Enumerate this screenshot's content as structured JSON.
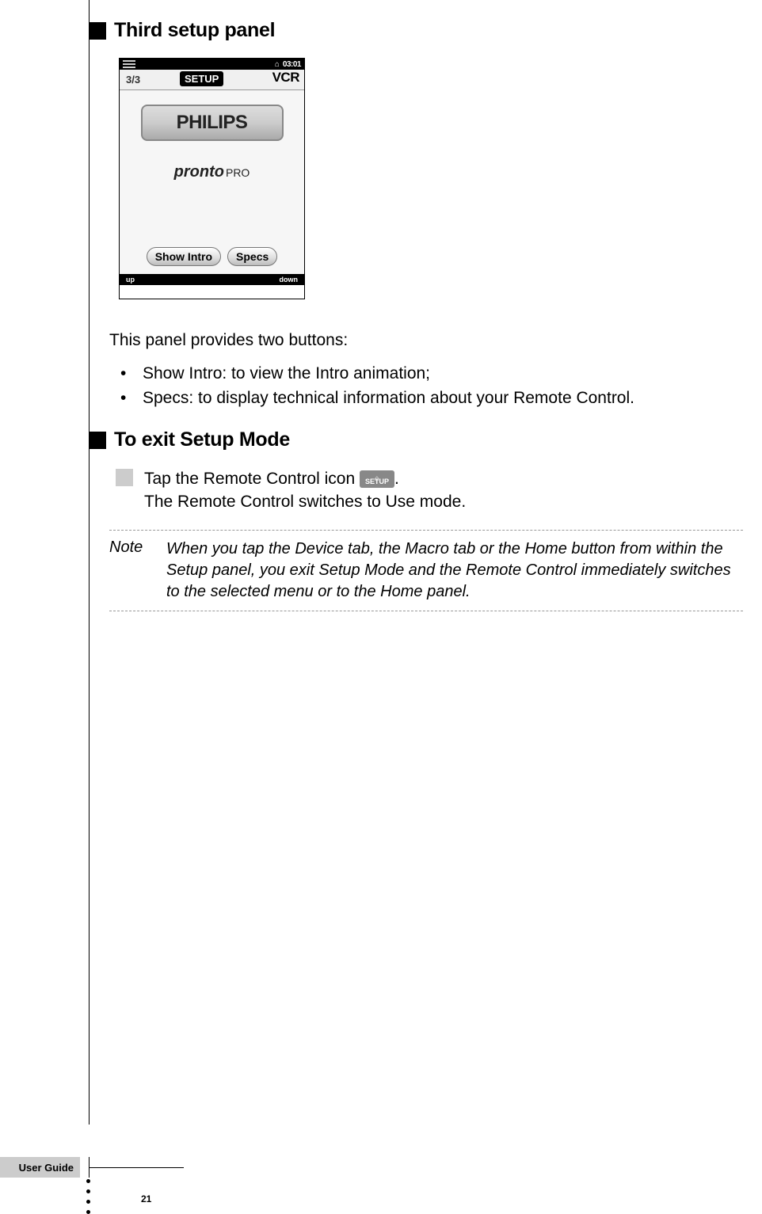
{
  "headings": {
    "section1": "Third setup panel",
    "section2": "To exit Setup Mode"
  },
  "remote": {
    "time": "03:01",
    "page_indicator": "3/3",
    "setup_label": "SETUP",
    "device_label": "VCR",
    "brand": "PHILIPS",
    "product_name": "pronto",
    "product_suffix": "PRO",
    "button_showintro": "Show Intro",
    "button_specs": "Specs",
    "bottom_up": "up",
    "bottom_down": "down"
  },
  "body": {
    "intro": "This panel provides two buttons:",
    "bullets": {
      "b0": "Show Intro: to view the Intro animation;",
      "b1": "Specs: to display technical information about your Remote Control."
    }
  },
  "exit": {
    "line1a": "Tap the Remote Control icon ",
    "line1b": ".",
    "icon_text": "SETUP",
    "line2": "The Remote Control switches to Use mode."
  },
  "note": {
    "label": "Note",
    "text": "When you tap the Device tab, the Macro tab or the Home button from within the Setup panel, you exit Setup Mode and the Remote Control immediately switches to the selected menu or to the Home panel."
  },
  "footer": {
    "label": "User Guide",
    "page": "21"
  },
  "colors": {
    "rule": "#000000",
    "grey_square": "#cccccc",
    "footer_bg": "#cccccc"
  }
}
